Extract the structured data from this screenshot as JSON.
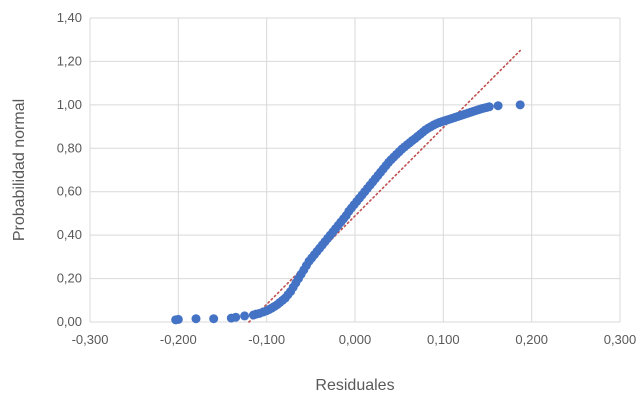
{
  "chart_data": {
    "type": "scatter",
    "title": "",
    "xlabel": "Residuales",
    "ylabel": "Probabilidad normal",
    "xlim": [
      -0.3,
      0.3
    ],
    "ylim": [
      0,
      1.4
    ],
    "xticks": [
      -0.3,
      -0.2,
      -0.1,
      0,
      0.1,
      0.2,
      0.3
    ],
    "yticks": [
      0,
      0.2,
      0.4,
      0.6,
      0.8,
      1.0,
      1.2,
      1.4
    ],
    "xtick_labels": [
      "-0,300",
      "-0,200",
      "-0,100",
      "0,000",
      "0,100",
      "0,200",
      "0,300"
    ],
    "ytick_labels": [
      "0,00",
      "0,20",
      "0,40",
      "0,60",
      "0,80",
      "1,00",
      "1,20",
      "1,40"
    ],
    "grid": true,
    "legend": "none",
    "colors": {
      "points": "#4472c4",
      "trendline": "#c0504d",
      "grid": "#d9d9d9",
      "text": "#595959"
    },
    "series": [
      {
        "values_x": [
          -0.203,
          -0.2,
          -0.18,
          -0.16,
          -0.14,
          -0.135,
          -0.125,
          -0.115,
          -0.112,
          -0.108,
          -0.104,
          -0.1,
          -0.097,
          -0.094,
          -0.091,
          -0.088,
          -0.085,
          -0.082,
          -0.079,
          -0.076,
          -0.073,
          -0.07,
          -0.067,
          -0.064,
          -0.061,
          -0.058,
          -0.055,
          -0.052,
          -0.049,
          -0.046,
          -0.043,
          -0.04,
          -0.037,
          -0.034,
          -0.031,
          -0.028,
          -0.025,
          -0.022,
          -0.019,
          -0.016,
          -0.013,
          -0.01,
          -0.007,
          -0.004,
          -0.001,
          0.002,
          0.005,
          0.008,
          0.011,
          0.014,
          0.017,
          0.02,
          0.023,
          0.026,
          0.029,
          0.032,
          0.035,
          0.038,
          0.041,
          0.044,
          0.047,
          0.05,
          0.053,
          0.056,
          0.059,
          0.062,
          0.065,
          0.068,
          0.071,
          0.074,
          0.077,
          0.08,
          0.083,
          0.086,
          0.089,
          0.092,
          0.095,
          0.098,
          0.101,
          0.104,
          0.107,
          0.11,
          0.113,
          0.116,
          0.119,
          0.122,
          0.125,
          0.128,
          0.131,
          0.134,
          0.137,
          0.14,
          0.143,
          0.146,
          0.149,
          0.152,
          0.162,
          0.187
        ],
        "values_y": [
          0.01,
          0.012,
          0.015,
          0.015,
          0.018,
          0.022,
          0.028,
          0.032,
          0.036,
          0.04,
          0.046,
          0.052,
          0.058,
          0.065,
          0.072,
          0.08,
          0.09,
          0.1,
          0.11,
          0.125,
          0.14,
          0.16,
          0.18,
          0.2,
          0.22,
          0.24,
          0.26,
          0.28,
          0.295,
          0.31,
          0.325,
          0.34,
          0.355,
          0.37,
          0.385,
          0.4,
          0.415,
          0.43,
          0.445,
          0.46,
          0.475,
          0.49,
          0.51,
          0.525,
          0.54,
          0.555,
          0.57,
          0.585,
          0.6,
          0.615,
          0.63,
          0.645,
          0.66,
          0.675,
          0.69,
          0.705,
          0.72,
          0.735,
          0.748,
          0.76,
          0.772,
          0.784,
          0.796,
          0.806,
          0.816,
          0.826,
          0.836,
          0.845,
          0.855,
          0.865,
          0.875,
          0.885,
          0.893,
          0.9,
          0.907,
          0.913,
          0.918,
          0.922,
          0.926,
          0.93,
          0.934,
          0.938,
          0.942,
          0.946,
          0.95,
          0.954,
          0.958,
          0.962,
          0.966,
          0.97,
          0.974,
          0.978,
          0.982,
          0.985,
          0.988,
          0.991,
          0.996,
          1.0
        ]
      }
    ],
    "trendline": {
      "style": "dotted",
      "x": [
        -0.12,
        0.187
      ],
      "y": [
        0.0,
        1.25
      ]
    }
  }
}
